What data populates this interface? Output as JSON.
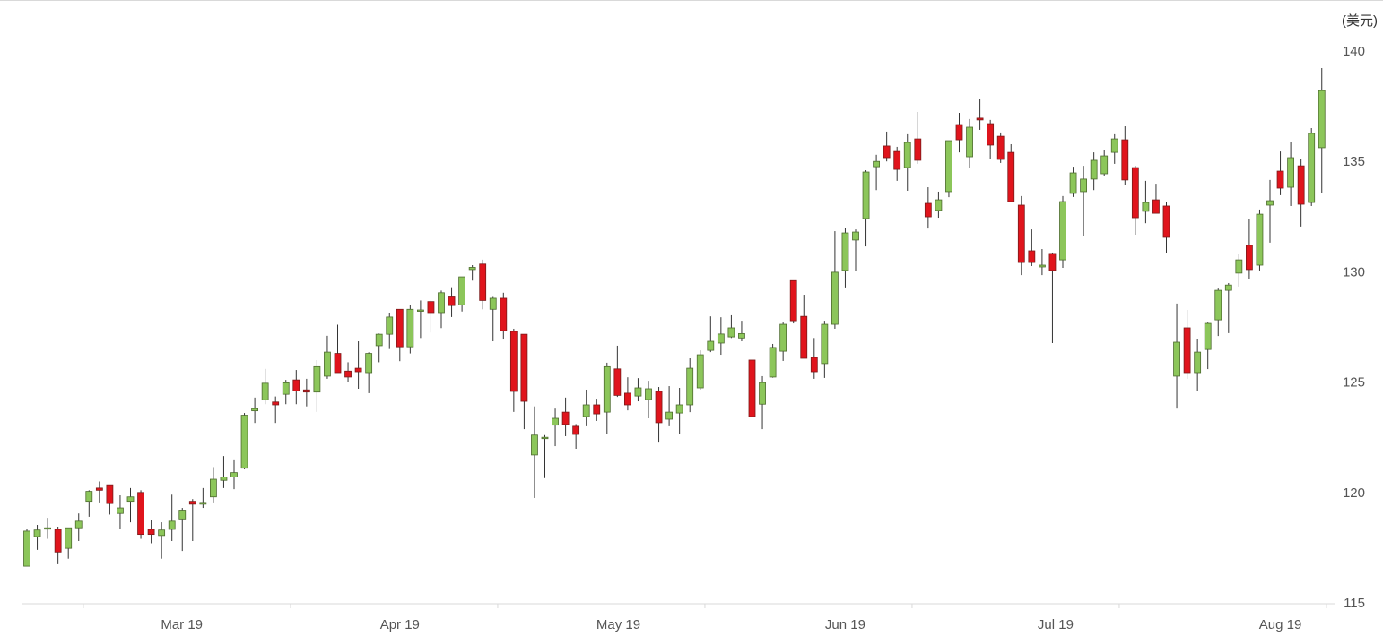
{
  "chart_data": {
    "type": "candlestick",
    "title": "",
    "y_unit_label": "(美元)",
    "ylim": [
      115,
      140
    ],
    "y_ticks": [
      115,
      120,
      125,
      130,
      135,
      140
    ],
    "y_axis_position": "right",
    "grid": false,
    "x_tick_labels": [
      "Mar 19",
      "Apr 19",
      "May 19",
      "Jun 19",
      "Jul 19",
      "Aug 19"
    ],
    "colors": {
      "up": "#8cc65a",
      "up_border": "#4d6b2e",
      "down": "#e0141c",
      "down_border": "#7a1a1a",
      "wick": "#333333",
      "axis": "#d9d9d9"
    },
    "ohlc_fields": [
      "open",
      "high",
      "low",
      "close"
    ],
    "candles": [
      [
        116.66,
        118.33,
        116.66,
        118.25
      ],
      [
        118.0,
        118.53,
        117.4,
        118.3
      ],
      [
        118.4,
        118.85,
        117.9,
        118.4
      ],
      [
        118.33,
        118.45,
        116.75,
        117.3
      ],
      [
        117.47,
        118.4,
        117.0,
        118.4
      ],
      [
        118.4,
        119.05,
        117.8,
        118.7
      ],
      [
        119.6,
        120.1,
        118.9,
        120.05
      ],
      [
        120.2,
        120.5,
        119.55,
        120.1
      ],
      [
        120.35,
        120.35,
        119.0,
        119.5
      ],
      [
        119.05,
        119.87,
        118.33,
        119.3
      ],
      [
        119.6,
        120.2,
        118.65,
        119.8
      ],
      [
        120.0,
        120.1,
        117.9,
        118.1
      ],
      [
        118.33,
        118.75,
        117.7,
        118.1
      ],
      [
        118.05,
        118.65,
        117.0,
        118.3
      ],
      [
        118.33,
        119.9,
        117.8,
        118.7
      ],
      [
        118.8,
        119.3,
        117.35,
        119.2
      ],
      [
        119.6,
        119.7,
        117.8,
        119.47
      ],
      [
        119.47,
        120.2,
        119.3,
        119.55
      ],
      [
        119.8,
        121.15,
        119.55,
        120.6
      ],
      [
        120.55,
        121.65,
        120.2,
        120.7
      ],
      [
        120.7,
        121.5,
        120.15,
        120.9
      ],
      [
        121.1,
        123.6,
        121.05,
        123.5
      ],
      [
        123.7,
        124.3,
        123.15,
        123.8
      ],
      [
        124.2,
        125.6,
        124.0,
        124.95
      ],
      [
        124.1,
        124.35,
        123.15,
        123.97
      ],
      [
        124.45,
        125.1,
        124.0,
        124.97
      ],
      [
        125.1,
        125.55,
        124.0,
        124.6
      ],
      [
        124.65,
        125.15,
        123.9,
        124.55
      ],
      [
        124.55,
        126.0,
        123.65,
        125.7
      ],
      [
        125.27,
        127.1,
        125.15,
        126.36
      ],
      [
        126.3,
        127.6,
        125.43,
        125.43
      ],
      [
        125.5,
        125.9,
        125.0,
        125.23
      ],
      [
        125.63,
        126.85,
        124.7,
        125.47
      ],
      [
        125.43,
        126.35,
        124.5,
        126.3
      ],
      [
        126.65,
        127.2,
        125.9,
        127.17
      ],
      [
        127.17,
        128.15,
        126.5,
        127.95
      ],
      [
        128.3,
        128.3,
        125.95,
        126.6
      ],
      [
        126.6,
        128.5,
        126.3,
        128.3
      ],
      [
        128.27,
        128.7,
        127.0,
        128.27
      ],
      [
        128.65,
        128.7,
        127.25,
        128.15
      ],
      [
        128.15,
        129.15,
        127.45,
        129.05
      ],
      [
        128.9,
        129.3,
        127.95,
        128.47
      ],
      [
        128.5,
        129.77,
        128.2,
        129.77
      ],
      [
        130.1,
        130.3,
        129.6,
        130.2
      ],
      [
        130.35,
        130.55,
        128.3,
        128.7
      ],
      [
        128.3,
        128.9,
        126.85,
        128.8
      ],
      [
        128.8,
        129.05,
        126.93,
        127.33
      ],
      [
        127.3,
        127.42,
        123.65,
        124.58
      ],
      [
        127.17,
        127.17,
        122.87,
        124.13
      ],
      [
        121.7,
        123.9,
        119.75,
        122.6
      ],
      [
        122.5,
        122.6,
        120.65,
        122.5
      ],
      [
        123.05,
        123.8,
        122.1,
        123.36
      ],
      [
        123.64,
        124.3,
        122.55,
        123.08
      ],
      [
        123.0,
        123.1,
        121.98,
        122.63
      ],
      [
        123.44,
        124.66,
        123.0,
        123.97
      ],
      [
        123.97,
        124.25,
        123.24,
        123.56
      ],
      [
        123.64,
        125.88,
        122.67,
        125.7
      ],
      [
        125.6,
        126.65,
        124.33,
        124.4
      ],
      [
        124.5,
        125.22,
        123.72,
        123.97
      ],
      [
        124.37,
        125.18,
        124.13,
        124.74
      ],
      [
        124.21,
        125.06,
        123.36,
        124.7
      ],
      [
        124.58,
        124.78,
        122.3,
        123.16
      ],
      [
        123.32,
        124.82,
        123.0,
        123.64
      ],
      [
        123.6,
        124.74,
        122.67,
        123.97
      ],
      [
        123.97,
        126.08,
        123.64,
        125.63
      ],
      [
        124.74,
        126.44,
        124.66,
        126.24
      ],
      [
        126.44,
        127.98,
        126.36,
        126.85
      ],
      [
        126.77,
        127.94,
        126.24,
        127.18
      ],
      [
        127.05,
        128.03,
        127.0,
        127.46
      ],
      [
        127.0,
        127.78,
        126.85,
        127.2
      ],
      [
        126.0,
        126.0,
        122.55,
        123.44
      ],
      [
        124.0,
        125.27,
        122.87,
        124.98
      ],
      [
        125.23,
        126.73,
        125.2,
        126.57
      ],
      [
        126.4,
        127.7,
        125.96,
        127.62
      ],
      [
        129.6,
        129.6,
        127.66,
        127.78
      ],
      [
        127.98,
        128.96,
        126.08,
        126.08
      ],
      [
        126.12,
        127.0,
        125.15,
        125.47
      ],
      [
        125.84,
        127.78,
        125.19,
        127.62
      ],
      [
        127.62,
        131.84,
        127.42,
        129.98
      ],
      [
        130.06,
        132.0,
        129.29,
        131.76
      ],
      [
        131.44,
        131.92,
        130.02,
        131.8
      ],
      [
        132.41,
        134.6,
        131.15,
        134.52
      ],
      [
        134.76,
        135.3,
        133.7,
        135.0
      ],
      [
        135.7,
        136.35,
        135.0,
        135.17
      ],
      [
        135.45,
        135.66,
        134.12,
        134.64
      ],
      [
        134.72,
        136.23,
        133.67,
        135.86
      ],
      [
        136.02,
        137.24,
        134.89,
        135.05
      ],
      [
        133.1,
        133.83,
        131.96,
        132.49
      ],
      [
        132.78,
        133.63,
        132.45,
        133.26
      ],
      [
        133.63,
        135.94,
        133.38,
        135.94
      ],
      [
        136.67,
        137.2,
        135.41,
        135.98
      ],
      [
        135.21,
        136.92,
        134.72,
        136.55
      ],
      [
        136.96,
        137.81,
        136.43,
        136.88
      ],
      [
        136.71,
        136.88,
        135.13,
        135.74
      ],
      [
        136.14,
        136.31,
        134.93,
        135.09
      ],
      [
        135.41,
        135.78,
        133.18,
        133.18
      ],
      [
        133.02,
        133.43,
        129.85,
        130.42
      ],
      [
        130.95,
        131.92,
        130.26,
        130.42
      ],
      [
        130.22,
        131.03,
        129.85,
        130.3
      ],
      [
        130.83,
        130.87,
        126.77,
        130.06
      ],
      [
        130.54,
        133.43,
        130.18,
        133.18
      ],
      [
        133.55,
        134.76,
        133.39,
        134.48
      ],
      [
        133.63,
        134.8,
        131.64,
        134.2
      ],
      [
        134.2,
        135.41,
        133.7,
        135.05
      ],
      [
        134.44,
        135.5,
        134.32,
        135.25
      ],
      [
        135.41,
        136.23,
        134.89,
        136.02
      ],
      [
        135.98,
        136.59,
        133.95,
        134.16
      ],
      [
        134.72,
        134.8,
        131.68,
        132.45
      ],
      [
        132.74,
        134.12,
        132.2,
        133.14
      ],
      [
        133.26,
        133.99,
        132.65,
        132.65
      ],
      [
        132.98,
        133.14,
        130.87,
        131.56
      ],
      [
        125.27,
        128.56,
        123.8,
        126.81
      ],
      [
        127.46,
        128.27,
        125.15,
        125.43
      ],
      [
        125.43,
        126.97,
        124.58,
        126.36
      ],
      [
        126.48,
        127.7,
        125.59,
        127.66
      ],
      [
        127.82,
        129.24,
        127.09,
        129.16
      ],
      [
        129.16,
        129.49,
        127.22,
        129.4
      ],
      [
        129.94,
        130.83,
        129.33,
        130.54
      ],
      [
        131.2,
        132.41,
        129.69,
        130.1
      ],
      [
        130.3,
        132.82,
        130.06,
        132.61
      ],
      [
        133.02,
        134.16,
        131.32,
        133.22
      ],
      [
        134.56,
        135.45,
        133.47,
        133.79
      ],
      [
        133.83,
        135.9,
        132.98,
        135.17
      ],
      [
        134.8,
        135.13,
        132.05,
        133.06
      ],
      [
        133.14,
        136.51,
        132.98,
        136.27
      ],
      [
        135.62,
        139.23,
        133.55,
        138.21
      ]
    ]
  }
}
